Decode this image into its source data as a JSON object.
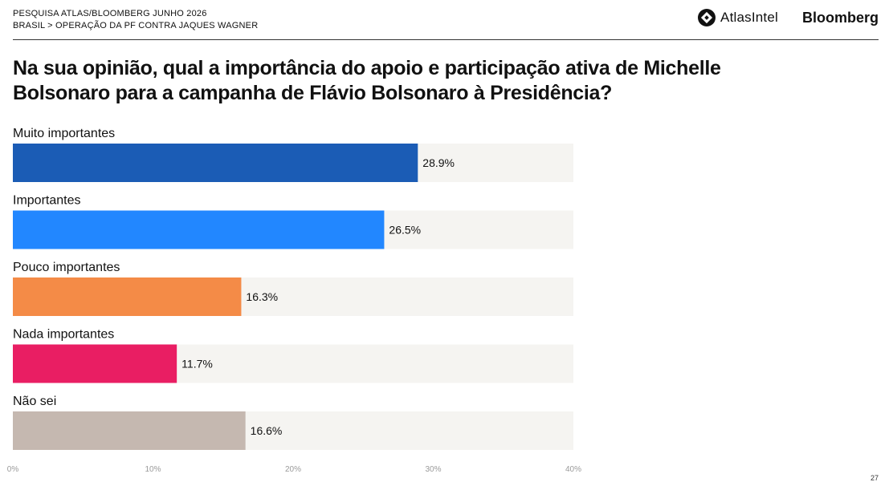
{
  "header": {
    "line1": "PESQUISA ATLAS/BLOOMBERG JUNHO 2026",
    "line2": "BRASIL > OPERAÇÃO DA PF CONTRA JAQUES WAGNER"
  },
  "logos": {
    "atlas_label": "AtlasIntel",
    "bloomberg_label": "Bloomberg"
  },
  "page_number": "27",
  "chart_data": {
    "type": "bar",
    "orientation": "horizontal",
    "title": "Na sua opinião, qual a importância do apoio e participação ativa de Michelle Bolsonaro para a campanha de Flávio Bolsonaro à Presidência?",
    "categories": [
      "Muito importantes",
      "Importantes",
      "Pouco importantes",
      "Nada importantes",
      "Não sei"
    ],
    "values": [
      28.9,
      26.5,
      16.3,
      11.7,
      16.6
    ],
    "value_labels": [
      "28.9%",
      "26.5%",
      "16.3%",
      "11.7%",
      "16.6%"
    ],
    "colors": [
      "#1b5cb5",
      "#2287ff",
      "#f48b47",
      "#e91e63",
      "#c5b8b0"
    ],
    "track_color": "#f5f4f1",
    "xlim": [
      0,
      40
    ],
    "xticks": [
      0,
      10,
      20,
      30,
      40
    ],
    "xtick_labels": [
      "0%",
      "10%",
      "20%",
      "30%",
      "40%"
    ],
    "grid": false,
    "legend": "none"
  }
}
